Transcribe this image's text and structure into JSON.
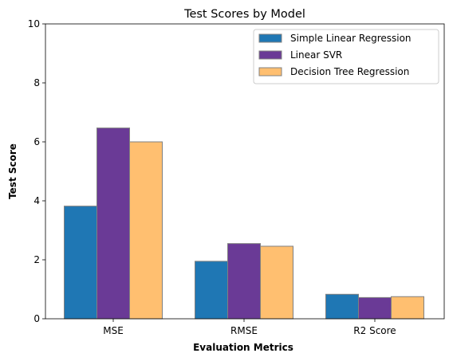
{
  "chart_data": {
    "type": "bar",
    "title": "Test Scores by Model",
    "xlabel": "Evaluation Metrics",
    "ylabel": "Test Score",
    "categories": [
      "MSE",
      "RMSE",
      "R2 Score"
    ],
    "ylim": [
      0,
      10
    ],
    "yticks": [
      "0",
      "2",
      "4",
      "6",
      "8",
      "10"
    ],
    "grid": false,
    "legend_position": "top-right",
    "series": [
      {
        "name": "Simple Linear Regression",
        "color": "#1f77b4",
        "values": [
          3.82,
          1.95,
          0.83
        ]
      },
      {
        "name": "Linear SVR",
        "color": "#6a3a96",
        "values": [
          6.47,
          2.55,
          0.72
        ]
      },
      {
        "name": "Decision Tree Regression",
        "color": "#ffbf70",
        "values": [
          6.0,
          2.46,
          0.75
        ]
      }
    ]
  }
}
